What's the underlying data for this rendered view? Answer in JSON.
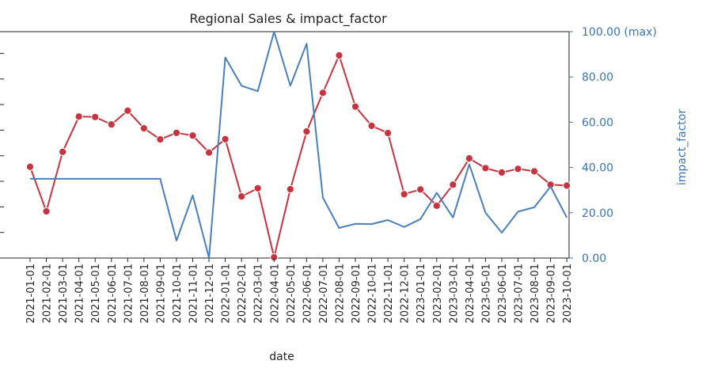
{
  "chart_data": {
    "type": "line",
    "title": "Regional Sales & impact_factor",
    "xlabel": "date",
    "y2label": "impact_factor",
    "x": [
      "2021-01-01",
      "2021-02-01",
      "2021-03-01",
      "2021-04-01",
      "2021-05-01",
      "2021-06-01",
      "2021-07-01",
      "2021-08-01",
      "2021-09-01",
      "2021-10-01",
      "2021-11-01",
      "2021-12-01",
      "2022-01-01",
      "2022-02-01",
      "2022-03-01",
      "2022-04-01",
      "2022-05-01",
      "2022-06-01",
      "2022-07-01",
      "2022-08-01",
      "2022-09-01",
      "2022-10-01",
      "2022-11-01",
      "2022-12-01",
      "2023-01-01",
      "2023-02-01",
      "2023-03-01",
      "2023-04-01",
      "2023-05-01",
      "2023-06-01",
      "2023-07-01",
      "2023-08-01",
      "2023-09-01",
      "2023-10-01"
    ],
    "series": [
      {
        "axis": "left",
        "color": "#c7333f",
        "marker": "circle",
        "values": [
          40.3,
          20.6,
          46.9,
          62.5,
          62.3,
          59.0,
          65.1,
          57.3,
          52.4,
          55.3,
          54.1,
          46.6,
          52.5,
          27.2,
          30.8,
          0.3,
          30.4,
          55.9,
          73.0,
          89.5,
          66.9,
          58.4,
          55.2,
          28.2,
          30.3,
          23.1,
          32.4,
          44.0,
          39.7,
          37.8,
          39.4,
          38.3,
          32.4,
          32.0
        ]
      },
      {
        "axis": "right",
        "color": "#4a7fb8",
        "marker": "none",
        "values": [
          35.0,
          35.0,
          35.0,
          35.0,
          35.0,
          35.0,
          35.0,
          35.0,
          35.0,
          7.7,
          27.7,
          0.0,
          88.6,
          76.1,
          73.7,
          100.0,
          76.1,
          94.7,
          26.7,
          13.3,
          15.1,
          15.0,
          16.8,
          13.7,
          17.2,
          28.8,
          17.9,
          41.4,
          20.0,
          11.2,
          20.5,
          22.4,
          31.6,
          17.9
        ]
      }
    ],
    "y_right": {
      "ylim": [
        0,
        100
      ],
      "ticks": [
        0,
        20,
        40,
        60,
        80,
        100
      ],
      "tick_labels": [
        "0.00",
        "20.00",
        "40.00",
        "60.00",
        "80.00",
        "100.00 (max)"
      ]
    },
    "y_left": {
      "ylim": [
        0,
        100
      ],
      "tick_count": 10
    },
    "colors": {
      "axis_right": "#3a74b3",
      "text": "#222222"
    },
    "grid": false
  }
}
